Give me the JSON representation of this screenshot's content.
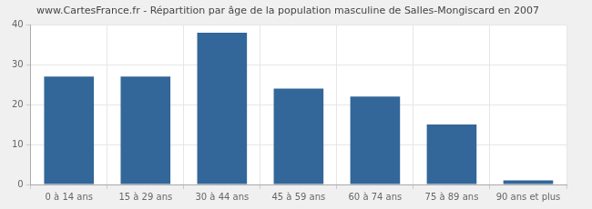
{
  "chart_data": {
    "type": "bar",
    "title": "www.CartesFrance.fr - Répartition par âge de la population masculine de Salles-Mongiscard en 2007",
    "categories": [
      "0 à 14 ans",
      "15 à 29 ans",
      "30 à 44 ans",
      "45 à 59 ans",
      "60 à 74 ans",
      "75 à 89 ans",
      "90 ans et plus"
    ],
    "values": [
      27,
      27,
      38,
      24,
      22,
      15,
      1
    ],
    "color": "#336699",
    "ylim": [
      0,
      40
    ],
    "yticks": [
      0,
      10,
      20,
      30,
      40
    ],
    "grid": true
  }
}
